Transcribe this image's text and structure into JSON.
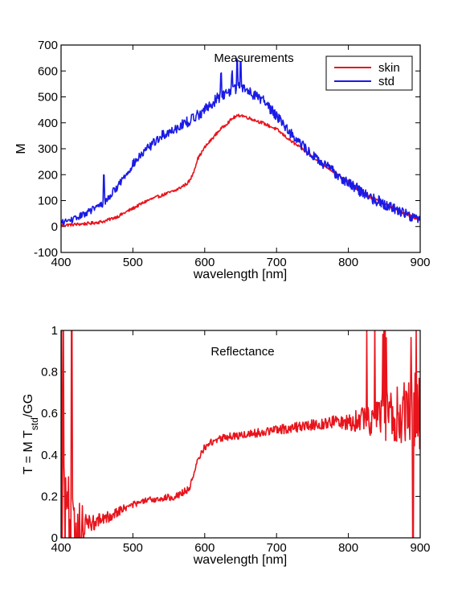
{
  "chart_data": [
    {
      "type": "line",
      "title": "Measurements",
      "xlabel": "wavelength [nm]",
      "ylabel": "M",
      "xlim": [
        400,
        900
      ],
      "ylim": [
        -100,
        700
      ],
      "xticks": [
        400,
        500,
        600,
        700,
        800,
        900
      ],
      "yticks": [
        -100,
        0,
        100,
        200,
        300,
        400,
        500,
        600,
        700
      ],
      "legend": {
        "position": "top-right",
        "entries": [
          "skin",
          "std"
        ]
      },
      "series": [
        {
          "name": "skin",
          "color": "#e8141c",
          "noise": 6,
          "x": [
            400,
            420,
            440,
            460,
            480,
            500,
            520,
            540,
            560,
            575,
            580,
            585,
            590,
            600,
            620,
            640,
            650,
            660,
            680,
            700,
            720,
            740,
            760,
            780,
            800,
            820,
            840,
            860,
            880,
            900
          ],
          "y": [
            5,
            8,
            12,
            20,
            40,
            70,
            100,
            120,
            140,
            165,
            180,
            215,
            260,
            305,
            370,
            420,
            430,
            420,
            400,
            375,
            330,
            290,
            250,
            210,
            170,
            130,
            100,
            75,
            50,
            25
          ]
        },
        {
          "name": "std",
          "color": "#1a1ae6",
          "noise": 18,
          "x": [
            400,
            420,
            440,
            460,
            480,
            500,
            520,
            540,
            560,
            580,
            600,
            620,
            640,
            650,
            660,
            680,
            700,
            720,
            740,
            760,
            780,
            800,
            820,
            840,
            860,
            880,
            900
          ],
          "y": [
            15,
            30,
            60,
            90,
            160,
            240,
            300,
            350,
            380,
            410,
            450,
            500,
            530,
            540,
            525,
            490,
            430,
            360,
            300,
            250,
            210,
            170,
            130,
            100,
            75,
            50,
            25
          ],
          "spikes": [
            [
              460,
              120
            ],
            [
              623,
              85
            ],
            [
              638,
              80
            ],
            [
              645,
              110
            ],
            [
              650,
              75
            ]
          ]
        }
      ]
    },
    {
      "type": "line",
      "title": "Reflectance",
      "xlabel": "wavelength [nm]",
      "ylabel_main": "T = M T",
      "ylabel_sub": "std",
      "ylabel_tail": "/GG",
      "xlim": [
        400,
        900
      ],
      "ylim": [
        0,
        1
      ],
      "xticks": [
        400,
        500,
        600,
        700,
        800,
        900
      ],
      "yticks": [
        0,
        0.2,
        0.4,
        0.6,
        0.8,
        1
      ],
      "series": [
        {
          "name": "",
          "color": "#e8141c",
          "x": [
            400,
            420,
            440,
            460,
            480,
            500,
            520,
            540,
            560,
            575,
            580,
            585,
            590,
            600,
            620,
            640,
            660,
            680,
            700,
            720,
            740,
            760,
            780,
            800,
            820,
            840,
            860,
            880,
            900
          ],
          "y": [
            0.25,
            0.04,
            0.07,
            0.09,
            0.13,
            0.16,
            0.18,
            0.19,
            0.2,
            0.23,
            0.25,
            0.3,
            0.37,
            0.44,
            0.48,
            0.49,
            0.5,
            0.51,
            0.52,
            0.53,
            0.54,
            0.55,
            0.56,
            0.56,
            0.57,
            0.58,
            0.59,
            0.6,
            0.62
          ],
          "noise_by_x": [
            [
              400,
              0.3
            ],
            [
              420,
              0.22
            ],
            [
              440,
              0.04
            ],
            [
              500,
              0.015
            ],
            [
              600,
              0.018
            ],
            [
              700,
              0.022
            ],
            [
              780,
              0.03
            ],
            [
              820,
              0.06
            ],
            [
              850,
              0.12
            ],
            [
              880,
              0.16
            ],
            [
              900,
              0.2
            ]
          ]
        }
      ]
    }
  ]
}
